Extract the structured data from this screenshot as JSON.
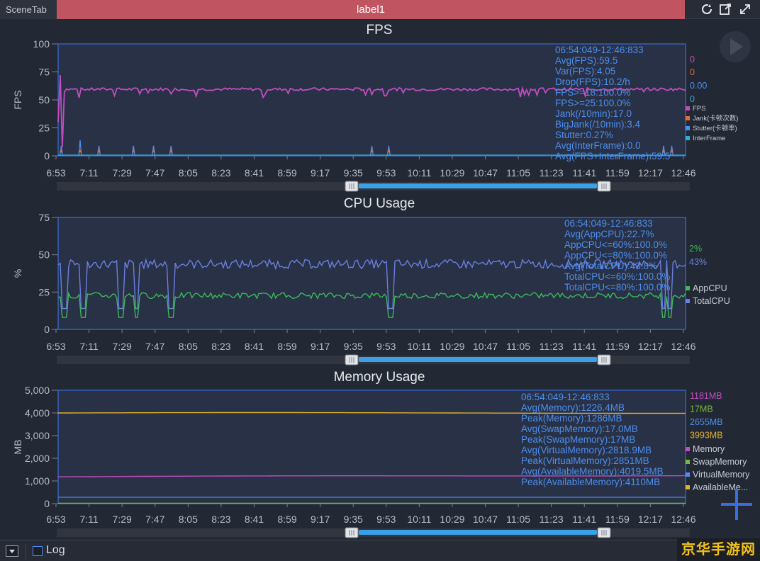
{
  "tabs": {
    "scene": "SceneTab",
    "label": "label1"
  },
  "icons": [
    "refresh-icon",
    "export-icon",
    "expand-icon",
    "play-icon",
    "add-icon",
    "dropdown-icon"
  ],
  "bottom": {
    "log_label": "Log",
    "watermark": "京华手游网"
  },
  "colors": {
    "fps": "#c04dc0",
    "jank": "#e36b3a",
    "stutter": "#4d8ff0",
    "interframe": "#2ab0d8",
    "app_cpu": "#3fb75a",
    "total_cpu": "#6a7fe0",
    "memory": "#c04dc0",
    "swap": "#7ab83c",
    "virtual": "#4d8ff0",
    "available": "#e0b030",
    "accent": "#3aa0e8",
    "tab": "#c05561"
  },
  "x_ticks": [
    "6:53",
    "7:11",
    "7:29",
    "7:47",
    "8:05",
    "8:23",
    "8:41",
    "8:59",
    "9:17",
    "9:35",
    "9:53",
    "10:11",
    "10:29",
    "10:47",
    "11:05",
    "11:23",
    "11:41",
    "11:59",
    "12:17",
    "12:46"
  ],
  "chart_data": [
    {
      "type": "line",
      "title": "FPS",
      "ylabel": "FPS",
      "ylim": [
        0,
        100
      ],
      "y_ticks": [
        "100",
        "75",
        "50",
        "25",
        "0"
      ],
      "series": [
        {
          "name": "FPS",
          "current": "0",
          "base": 59.5
        },
        {
          "name": "Jank(卡顿次数)",
          "current": "0"
        },
        {
          "name": "Stutter(卡顿率)",
          "current": "0.00"
        },
        {
          "name": "InterFrame",
          "current": "0"
        }
      ],
      "stats": [
        "06:54:049-12:46:833",
        "Avg(FPS):59.5",
        "Var(FPS):4.05",
        "Drop(FPS):10.2/h",
        "FPS>=18:100.0%",
        "FPS>=25:100.0%",
        "Jank(/10min):17.0",
        "BigJank(/10min):3.4",
        "Stutter:0.27%",
        "Avg(InterFrame):0.0",
        "Avg(FPS+InterFrame):59.5"
      ]
    },
    {
      "type": "line",
      "title": "CPU Usage",
      "ylabel": "%",
      "ylim": [
        0,
        75
      ],
      "y_ticks": [
        "75",
        "50",
        "25",
        "0"
      ],
      "series": [
        {
          "name": "AppCPU",
          "current": "2%",
          "base": 22.7
        },
        {
          "name": "TotalCPU",
          "current": "43%",
          "base": 43.8
        }
      ],
      "stats": [
        "06:54:049-12:46:833",
        "Avg(AppCPU):22.7%",
        "AppCPU<=60%:100.0%",
        "AppCPU<=80%:100.0%",
        "Avg(TotalCPU):43.8%",
        "TotalCPU<=60%:100.0%",
        "TotalCPU<=80%:100.0%"
      ]
    },
    {
      "type": "line",
      "title": "Memory Usage",
      "ylabel": "MB",
      "ylim": [
        0,
        5000
      ],
      "y_ticks": [
        "5,000",
        "4,000",
        "3,000",
        "2,000",
        "1,000",
        "0"
      ],
      "series": [
        {
          "name": "Memory",
          "current": "1181MB",
          "base": 1226.4
        },
        {
          "name": "SwapMemory",
          "current": "17MB",
          "base": 17
        },
        {
          "name": "VirtualMemory",
          "current": "2655MB",
          "base": 2818.9
        },
        {
          "name": "AvailableMe...",
          "current": "3993MB",
          "base": 4019.5
        }
      ],
      "stats": [
        "06:54:049-12:46:833",
        "Avg(Memory):1226.4MB",
        "Peak(Memory):1286MB",
        "Avg(SwapMemory):17.0MB",
        "Peak(SwapMemory):17MB",
        "Avg(VirtualMemory):2818.9MB",
        "Peak(VirtualMemory):2851MB",
        "Avg(AvailableMemory):4019.5MB",
        "Peak(AvailableMemory):4110MB"
      ]
    }
  ]
}
